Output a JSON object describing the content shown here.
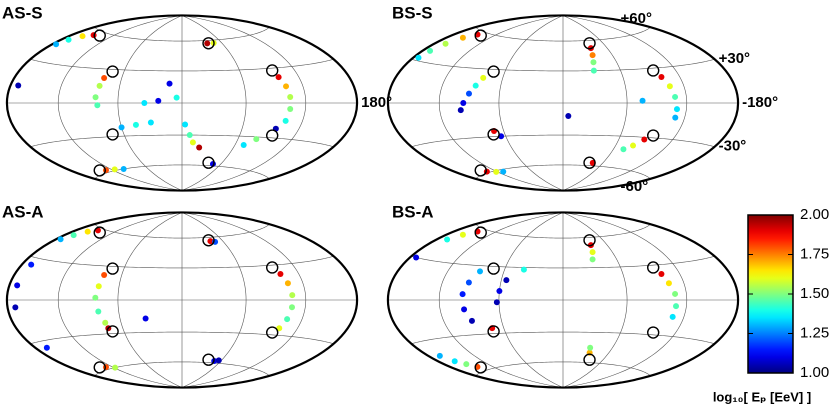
{
  "chart_data": [
    {
      "type": "scatter",
      "title": "AS-S",
      "projection": "hammer",
      "xlim": [
        -180,
        180
      ],
      "ylim": [
        -90,
        90
      ],
      "xticks": [
        {
          "value": 180,
          "label": "180°"
        }
      ],
      "x": [
        -150,
        -162,
        -170,
        -175,
        -170,
        -78,
        -80,
        -82,
        -80,
        -60,
        -45,
        -30,
        -130,
        -115,
        -100,
        -12,
        -35,
        -22,
        -5,
        3,
        8,
        12,
        20,
        38,
        48,
        98,
        102,
        104,
        104,
        102,
        95,
        80,
        70,
        48
      ],
      "y": [
        56,
        53,
        48,
        43,
        12,
        22,
        15,
        5,
        -2,
        -22,
        -20,
        -18,
        -58,
        -59,
        -60,
        18,
        0,
        2,
        5,
        -20,
        -30,
        -37,
        -42,
        57,
        57,
        22,
        14,
        5,
        -5,
        -15,
        -22,
        -32,
        -38,
        -58
      ],
      "values": [
        1.9,
        1.65,
        1.4,
        1.3,
        1.05,
        1.8,
        1.55,
        1.5,
        1.45,
        1.3,
        1.4,
        1.35,
        1.8,
        1.6,
        1.3,
        1.1,
        1.35,
        1.1,
        1.4,
        1.35,
        1.45,
        1.6,
        1.95,
        1.95,
        1.6,
        1.9,
        1.7,
        1.55,
        1.5,
        1.4,
        1.05,
        1.5,
        1.35,
        1.1
      ],
      "sources": {
        "x": [
          -140,
          40,
          -72,
          95,
          -72,
          95,
          -140,
          40
        ],
        "y": [
          57,
          57,
          28,
          28,
          -28,
          -28,
          -57,
          -57
        ]
      }
    },
    {
      "type": "scatter",
      "title": "BS-S",
      "projection": "hammer",
      "xlim": [
        180,
        -180
      ],
      "ylim": [
        -90,
        90
      ],
      "xticks": [
        {
          "value": -180,
          "label": "-180°"
        }
      ],
      "yticks": [
        {
          "value": 60,
          "label": "+60°"
        },
        {
          "value": 30,
          "label": "+30°"
        },
        {
          "value": -30,
          "label": "-30°"
        },
        {
          "value": -60,
          "label": "-60°"
        }
      ],
      "x": [
        148,
        158,
        165,
        170,
        173,
        80,
        85,
        90,
        95,
        98,
        70,
        65,
        135,
        122,
        110,
        -5,
        -38,
        -36,
        -34,
        -32,
        -100,
        -105,
        -108,
        -110,
        -110,
        -88,
        -80,
        -72,
        -45,
        -75
      ],
      "y": [
        57,
        52,
        45,
        38,
        32,
        22,
        15,
        8,
        0,
        -6,
        -25,
        -30,
        -59,
        -61,
        -62,
        -12,
        52,
        45,
        38,
        30,
        22,
        14,
        5,
        -5,
        -12,
        -32,
        -38,
        -42,
        -57,
        2
      ],
      "values": [
        1.9,
        1.7,
        1.55,
        1.45,
        1.35,
        1.6,
        1.4,
        1.2,
        1.1,
        1.05,
        1.9,
        1.1,
        1.9,
        1.6,
        1.3,
        1.05,
        1.9,
        1.75,
        1.5,
        1.45,
        1.9,
        1.6,
        1.45,
        1.35,
        1.3,
        1.9,
        1.6,
        1.45,
        1.9,
        1.3
      ],
      "sources": {
        "x": [
          140,
          -40,
          72,
          -95,
          72,
          -95,
          140,
          -40
        ],
        "y": [
          57,
          57,
          28,
          28,
          -28,
          -28,
          -57,
          -57
        ]
      }
    },
    {
      "type": "scatter",
      "title": "AS-A",
      "projection": "hammer",
      "xlim": [
        -180,
        180
      ],
      "ylim": [
        -90,
        90
      ],
      "x": [
        -150,
        -160,
        -168,
        -174,
        -168,
        -170,
        -170,
        -78,
        -80,
        -82,
        -80,
        -76,
        -75,
        -130,
        -118,
        -165,
        -35,
        42,
        48,
        100,
        104,
        106,
        106,
        104,
        100,
        50,
        56
      ],
      "y": [
        58,
        55,
        50,
        45,
        25,
        10,
        -5,
        22,
        12,
        2,
        -10,
        -20,
        -25,
        -58,
        -60,
        -35,
        -17,
        56,
        55,
        22,
        14,
        4,
        -6,
        -16,
        -24,
        -58,
        -57
      ],
      "values": [
        1.9,
        1.65,
        1.45,
        1.3,
        1.15,
        1.1,
        1.05,
        1.8,
        1.6,
        1.5,
        1.45,
        1.55,
        1.95,
        1.8,
        1.55,
        1.15,
        1.1,
        1.9,
        1.2,
        1.9,
        1.7,
        1.55,
        1.5,
        1.45,
        1.6,
        1.1,
        1.05
      ],
      "sources": {
        "x": [
          -140,
          40,
          -72,
          95,
          -72,
          95,
          -140,
          40
        ],
        "y": [
          57,
          57,
          28,
          28,
          -28,
          -28,
          -57,
          -57
        ]
      }
    },
    {
      "type": "scatter",
      "title": "BS-A",
      "projection": "hammer",
      "xlim": [
        180,
        -180
      ],
      "ylim": [
        -90,
        90
      ],
      "x": [
        148,
        158,
        166,
        172,
        85,
        92,
        96,
        95,
        90,
        55,
        60,
        62,
        40,
        72,
        165,
        158,
        150,
        143,
        -38,
        -36,
        -33,
        -100,
        -104,
        -108,
        -109,
        -108,
        -35,
        -33
      ],
      "y": [
        57,
        52,
        46,
        30,
        25,
        15,
        5,
        -8,
        -18,
        18,
        8,
        -2,
        28,
        -25,
        -42,
        -48,
        -52,
        -56,
        52,
        45,
        38,
        22,
        14,
        5,
        -5,
        -14,
        -50,
        -45
      ],
      "values": [
        1.9,
        1.6,
        1.4,
        1.1,
        1.3,
        1.2,
        1.15,
        1.1,
        1.05,
        1.05,
        1.1,
        1.05,
        1.4,
        1.9,
        1.3,
        1.35,
        1.5,
        1.8,
        1.9,
        1.6,
        1.5,
        1.9,
        1.65,
        1.5,
        1.45,
        1.35,
        1.7,
        1.5
      ],
      "sources": {
        "x": [
          140,
          -40,
          72,
          -95,
          72,
          -95,
          140,
          -40
        ],
        "y": [
          57,
          57,
          28,
          28,
          -28,
          -28,
          -57,
          -57
        ]
      }
    }
  ],
  "graticule": {
    "lon": [
      -120,
      -60,
      0,
      60,
      120
    ],
    "lat": [
      -60,
      -30,
      0,
      30,
      60
    ]
  },
  "colorbar": {
    "label": "log₁₀[ Eₚ [EeV] ]",
    "colormap": "jet",
    "clim": [
      1,
      2
    ],
    "ticks": [
      {
        "value": 1,
        "label": "1.00"
      },
      {
        "value": 1.25,
        "label": "1.25"
      },
      {
        "value": 1.5,
        "label": "1.50"
      },
      {
        "value": 1.75,
        "label": "1.75"
      },
      {
        "value": 2,
        "label": "2.00"
      }
    ]
  }
}
